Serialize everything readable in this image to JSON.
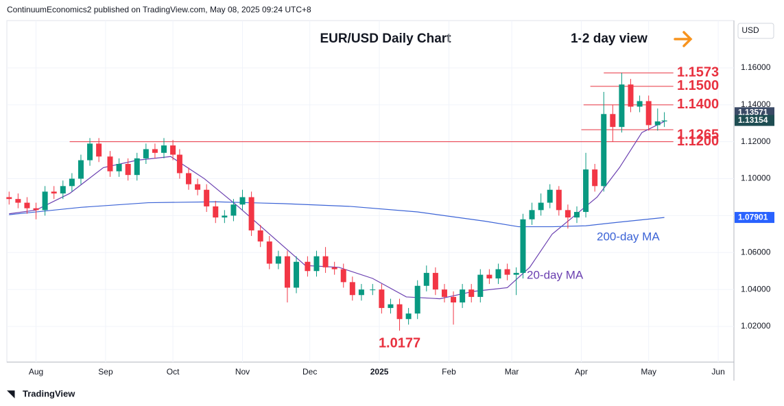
{
  "header": "ContinuumEconomics2 published on TradingView.com, May 08, 2025 09:24 UTC+8",
  "footer": "TradingView",
  "chart_data": {
    "type": "candlestick",
    "title": "EUR/USD Daily Chart",
    "subtitle": "1-2 day view",
    "currency": "USD",
    "xlim": [
      -13,
      311
    ],
    "xticks": [
      {
        "value": 0,
        "label": "Aug"
      },
      {
        "value": 31,
        "label": "Sep"
      },
      {
        "value": 61,
        "label": "Oct"
      },
      {
        "value": 92,
        "label": "Nov"
      },
      {
        "value": 122,
        "label": "Dec"
      },
      {
        "value": 153,
        "label": "2025"
      },
      {
        "value": 184,
        "label": "Feb"
      },
      {
        "value": 212,
        "label": "Mar"
      },
      {
        "value": 243,
        "label": "Apr"
      },
      {
        "value": 273,
        "label": "May"
      },
      {
        "value": 304,
        "label": "Jun"
      }
    ],
    "ylim": [
      1.0007,
      1.1856
    ],
    "yticks": [
      {
        "value": 1.02,
        "label": "1.02000"
      },
      {
        "value": 1.04,
        "label": "1.04000"
      },
      {
        "value": 1.06,
        "label": "1.06000"
      },
      {
        "value": 1.08,
        "label": "1.08000"
      },
      {
        "value": 1.1,
        "label": "1.10000"
      },
      {
        "value": 1.12,
        "label": "1.12000"
      },
      {
        "value": 1.14,
        "label": "1.14000"
      },
      {
        "value": 1.16,
        "label": "1.16000"
      }
    ],
    "up_color": "#089981",
    "down_color": "#f23645",
    "x": [
      -12,
      -8,
      -4,
      0,
      4,
      8,
      12,
      16,
      20,
      24,
      28,
      33,
      37,
      41,
      45,
      49,
      53,
      57,
      61,
      64,
      68,
      72,
      76,
      80,
      84,
      88,
      92,
      96,
      100,
      104,
      108,
      112,
      116,
      121,
      125,
      129,
      133,
      137,
      141,
      145,
      150,
      154,
      158,
      162,
      166,
      170,
      174,
      178,
      182,
      186,
      190,
      194,
      198,
      202,
      206,
      210,
      214,
      217,
      221,
      225,
      229,
      233,
      237,
      241,
      245,
      249,
      253,
      257,
      261,
      265,
      269,
      273,
      277,
      280
    ],
    "open": [
      1.09,
      1.089,
      1.087,
      1.084,
      1.083,
      1.093,
      1.092,
      1.096,
      1.1,
      1.11,
      1.119,
      1.112,
      1.104,
      1.108,
      1.102,
      1.111,
      1.116,
      1.114,
      1.118,
      1.113,
      1.103,
      1.097,
      1.094,
      1.085,
      1.079,
      1.08,
      1.086,
      1.09,
      1.072,
      1.066,
      1.054,
      1.058,
      1.041,
      1.055,
      1.05,
      1.058,
      1.052,
      1.051,
      1.044,
      1.037,
      1.04,
      1.04,
      1.03,
      1.032,
      1.024,
      1.027,
      1.042,
      1.049,
      1.04,
      1.036,
      1.033,
      1.04,
      1.036,
      1.048,
      1.046,
      1.051,
      1.048,
      1.049,
      1.078,
      1.083,
      1.087,
      1.094,
      1.083,
      1.079,
      1.082,
      1.105,
      1.096,
      1.135,
      1.128,
      1.151,
      1.139,
      1.142,
      1.129,
      1.131
    ],
    "high": [
      1.093,
      1.092,
      1.09,
      1.087,
      1.096,
      1.096,
      1.099,
      1.103,
      1.113,
      1.122,
      1.122,
      1.115,
      1.111,
      1.111,
      1.114,
      1.119,
      1.119,
      1.122,
      1.121,
      1.116,
      1.106,
      1.1,
      1.097,
      1.088,
      1.083,
      1.089,
      1.094,
      1.093,
      1.075,
      1.069,
      1.061,
      1.061,
      1.058,
      1.058,
      1.061,
      1.063,
      1.055,
      1.054,
      1.047,
      1.043,
      1.043,
      1.043,
      1.035,
      1.035,
      1.03,
      1.045,
      1.053,
      1.052,
      1.043,
      1.039,
      1.043,
      1.043,
      1.051,
      1.051,
      1.054,
      1.054,
      1.052,
      1.081,
      1.087,
      1.092,
      1.097,
      1.096,
      1.086,
      1.085,
      1.114,
      1.108,
      1.147,
      1.14,
      1.1573,
      1.154,
      1.145,
      1.145,
      1.138,
      1.136
    ],
    "low": [
      1.086,
      1.084,
      1.081,
      1.078,
      1.08,
      1.089,
      1.089,
      1.093,
      1.097,
      1.107,
      1.109,
      1.101,
      1.101,
      1.099,
      1.099,
      1.108,
      1.111,
      1.111,
      1.11,
      1.1,
      1.094,
      1.091,
      1.082,
      1.076,
      1.076,
      1.077,
      1.083,
      1.069,
      1.063,
      1.051,
      1.051,
      1.033,
      1.038,
      1.047,
      1.047,
      1.049,
      1.048,
      1.041,
      1.034,
      1.034,
      1.037,
      1.027,
      1.027,
      1.0177,
      1.021,
      1.024,
      1.039,
      1.037,
      1.033,
      1.021,
      1.03,
      1.033,
      1.033,
      1.043,
      1.043,
      1.045,
      1.037,
      1.046,
      1.075,
      1.08,
      1.084,
      1.08,
      1.073,
      1.076,
      1.079,
      1.093,
      1.093,
      1.12,
      1.125,
      1.136,
      1.136,
      1.126,
      1.126,
      1.128
    ],
    "close": [
      1.089,
      1.087,
      1.084,
      1.083,
      1.093,
      1.092,
      1.096,
      1.1,
      1.11,
      1.119,
      1.112,
      1.104,
      1.108,
      1.102,
      1.111,
      1.116,
      1.114,
      1.118,
      1.113,
      1.103,
      1.097,
      1.094,
      1.085,
      1.079,
      1.08,
      1.086,
      1.09,
      1.072,
      1.066,
      1.054,
      1.058,
      1.041,
      1.055,
      1.05,
      1.058,
      1.052,
      1.051,
      1.044,
      1.037,
      1.04,
      1.04,
      1.03,
      1.032,
      1.024,
      1.027,
      1.042,
      1.049,
      1.04,
      1.036,
      1.033,
      1.04,
      1.036,
      1.048,
      1.046,
      1.051,
      1.048,
      1.049,
      1.078,
      1.083,
      1.087,
      1.094,
      1.083,
      1.079,
      1.082,
      1.105,
      1.096,
      1.135,
      1.128,
      1.151,
      1.139,
      1.142,
      1.129,
      1.131,
      1.1315
    ],
    "series": [
      {
        "name": "20-day MA",
        "color": "#6a3fb0",
        "x": [
          -12,
          0,
          15,
          30,
          45,
          60,
          75,
          90,
          105,
          120,
          135,
          150,
          165,
          180,
          195,
          210,
          220,
          230,
          240,
          250,
          260,
          270,
          280
        ],
        "values": [
          1.081,
          1.083,
          1.092,
          1.106,
          1.11,
          1.112,
          1.1,
          1.085,
          1.069,
          1.053,
          1.052,
          1.046,
          1.036,
          1.035,
          1.039,
          1.041,
          1.052,
          1.07,
          1.08,
          1.09,
          1.106,
          1.125,
          1.131
        ]
      },
      {
        "name": "200-day MA",
        "color": "#3b63d6",
        "x": [
          -12,
          20,
          50,
          80,
          110,
          140,
          170,
          200,
          215,
          230,
          245,
          260,
          280
        ],
        "values": [
          1.0805,
          1.0845,
          1.087,
          1.0875,
          1.0865,
          1.085,
          1.082,
          1.077,
          1.074,
          1.074,
          1.0745,
          1.0765,
          1.079
        ]
      }
    ],
    "levels": [
      {
        "value": 1.1573,
        "label": "1.1573"
      },
      {
        "value": 1.15,
        "label": "1.1500"
      },
      {
        "value": 1.14,
        "label": "1.1400"
      },
      {
        "value": 1.1265,
        "label": "1.1265"
      },
      {
        "value": 1.12,
        "label": "1.1200"
      }
    ],
    "low_label": {
      "value": 1.0177,
      "label": "1.0177"
    },
    "price_tags": [
      {
        "value": 1.13571,
        "label": "1.13571",
        "color": "#3a4a66"
      },
      {
        "value": 1.13154,
        "label": "1.13154",
        "color": "#1e4d52"
      },
      {
        "value": 1.07901,
        "label": "1.07901",
        "color": "#2962ff"
      }
    ]
  }
}
